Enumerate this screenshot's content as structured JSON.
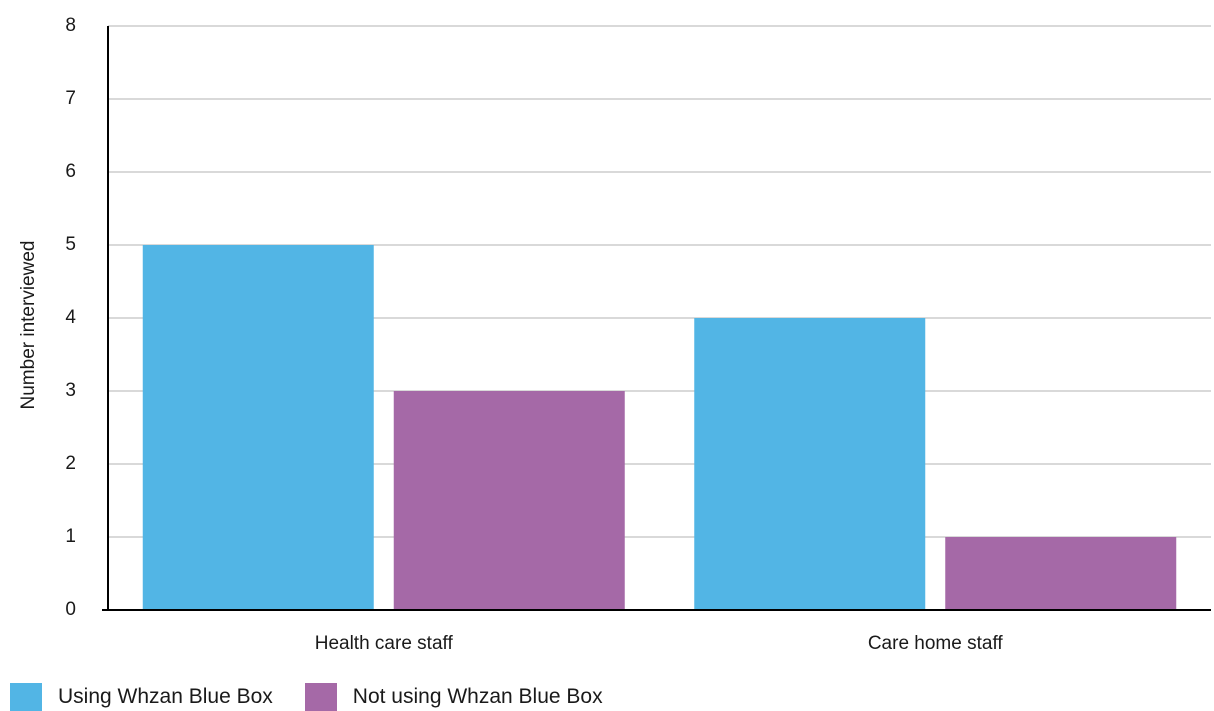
{
  "chart_data": {
    "type": "bar",
    "title": "",
    "xlabel": "",
    "ylabel": "Number interviewed",
    "categories": [
      "Health care staff",
      "Care home staff"
    ],
    "series": [
      {
        "name": "Using Whzan Blue Box",
        "values": [
          5,
          4
        ],
        "color": "#52b5e5"
      },
      {
        "name": "Not using Whzan Blue Box",
        "values": [
          3,
          1
        ],
        "color": "#a569a7"
      }
    ],
    "ylim": [
      0,
      8
    ],
    "yticks": [
      0,
      1,
      2,
      3,
      4,
      5,
      6,
      7,
      8
    ],
    "grid": true,
    "legend_position": "bottom-left"
  }
}
